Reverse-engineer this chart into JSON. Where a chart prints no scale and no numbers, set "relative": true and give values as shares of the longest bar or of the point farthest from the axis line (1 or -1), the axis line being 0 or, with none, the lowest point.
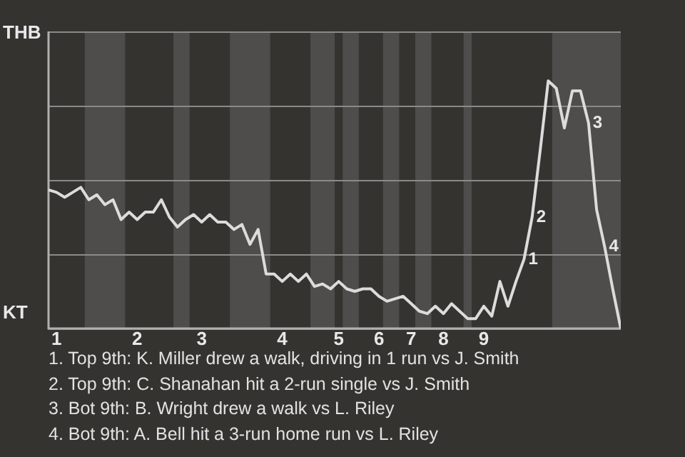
{
  "chart_data": {
    "type": "line",
    "categories": [
      null,
      "1",
      null,
      null,
      null,
      null,
      null,
      null,
      null,
      null,
      null,
      "2",
      null,
      null,
      null,
      null,
      null,
      null,
      null,
      "3",
      null,
      null,
      null,
      null,
      null,
      null,
      null,
      null,
      null,
      "4",
      null,
      null,
      null,
      null,
      null,
      null,
      "5",
      null,
      null,
      null,
      null,
      "6",
      null,
      null,
      null,
      "7",
      null,
      null,
      null,
      "8",
      null,
      null,
      null,
      null,
      "9",
      null,
      null,
      null,
      null,
      null,
      null,
      null,
      null,
      null,
      null,
      null,
      null,
      null,
      null,
      null,
      null,
      null
    ],
    "series": [
      {
        "color": "#dcdcdc",
        "values": [
          0.56,
          0.55,
          0.53,
          0.55,
          0.57,
          0.52,
          0.54,
          0.5,
          0.52,
          0.44,
          0.47,
          0.44,
          0.47,
          0.47,
          0.52,
          0.45,
          0.41,
          0.44,
          0.46,
          0.43,
          0.46,
          0.43,
          0.43,
          0.4,
          0.42,
          0.34,
          0.4,
          0.22,
          0.22,
          0.19,
          0.22,
          0.19,
          0.22,
          0.17,
          0.18,
          0.16,
          0.19,
          0.16,
          0.15,
          0.16,
          0.16,
          0.13,
          0.11,
          0.12,
          0.13,
          0.1,
          0.07,
          0.06,
          0.09,
          0.06,
          0.1,
          0.07,
          0.04,
          0.04,
          0.09,
          0.05,
          0.19,
          0.09,
          0.19,
          0.28,
          0.45,
          0.72,
          1,
          0.97,
          0.81,
          0.96,
          0.96,
          0.83,
          0.48,
          0.33,
          0.16,
          0
        ]
      }
    ],
    "relative": true,
    "grid": "y",
    "annotations": [
      "THB",
      "KT",
      "1",
      "2",
      "3",
      "4",
      "1. Top 9th: K. Miller drew a walk, driving in 1 run vs J. Smith",
      "2. Top 9th: C. Shanahan hit a 2-run single vs J. Smith",
      "3. Bot 9th: B. Wright drew a walk vs L. Riley",
      "4. Bot 9th: A. Bell hit a 3-run home run vs L. Riley"
    ]
  }
}
